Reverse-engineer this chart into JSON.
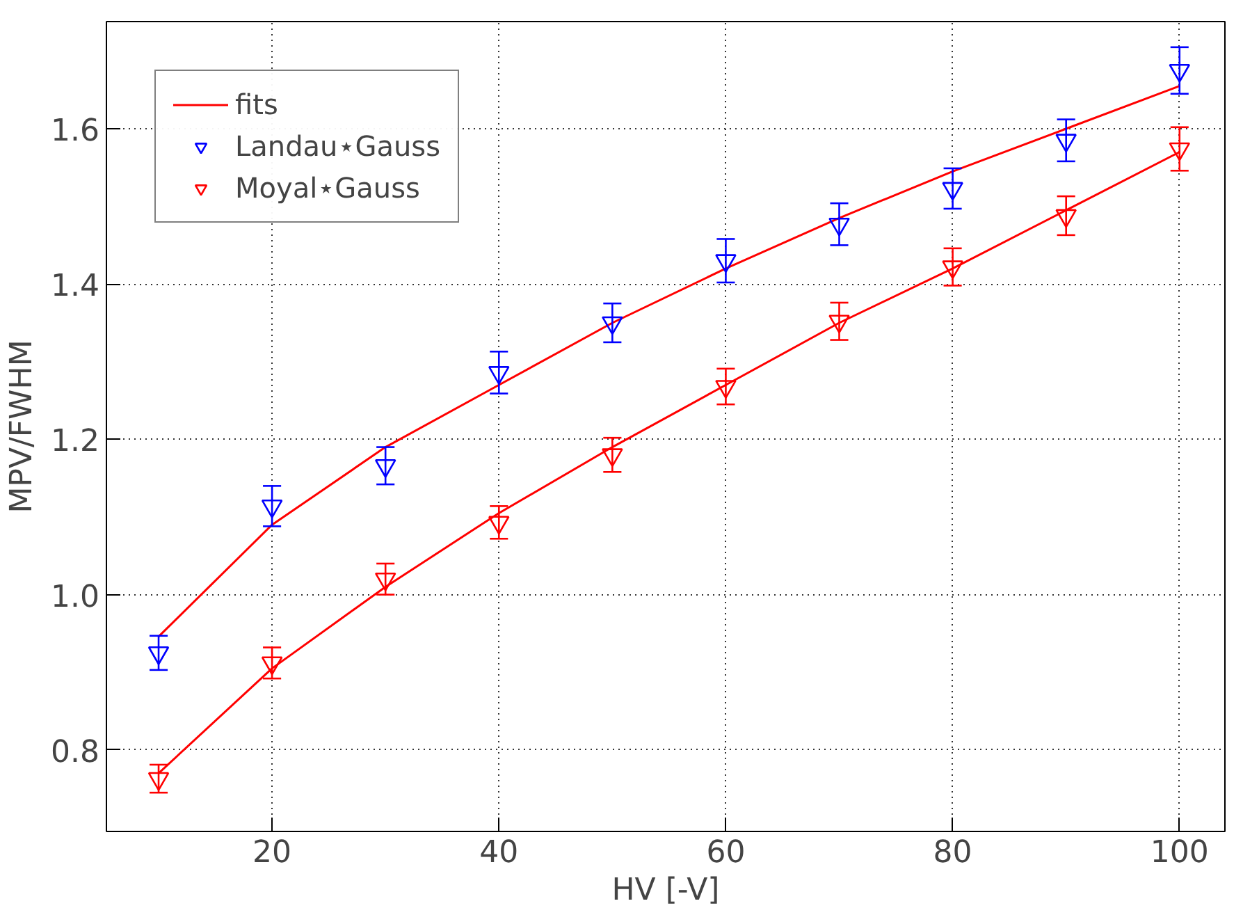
{
  "chart_data": {
    "type": "scatter",
    "ylabel": "MPV/FWHM",
    "xlabel": "HV [-V]",
    "x": [
      10,
      20,
      30,
      40,
      50,
      60,
      70,
      80,
      90,
      100
    ],
    "series": [
      {
        "name": "fits",
        "type": "line",
        "marker": "none",
        "color": "#ff0000",
        "values": [
          0.946,
          1.09,
          1.19,
          1.27,
          1.35,
          1.42,
          1.485,
          1.545,
          1.6,
          1.655
        ]
      },
      {
        "type": "line",
        "marker": "none",
        "color": "#ff0000",
        "values": [
          0.77,
          0.905,
          1.01,
          1.105,
          1.19,
          1.27,
          1.35,
          1.42,
          1.495,
          1.57
        ]
      },
      {
        "name": "Landau⋆Gauss",
        "color": "#0000ff",
        "values": [
          0.925,
          1.114,
          1.166,
          1.286,
          1.35,
          1.43,
          1.477,
          1.523,
          1.585,
          1.675
        ],
        "errors": [
          0.022,
          0.026,
          0.024,
          0.027,
          0.025,
          0.028,
          0.027,
          0.026,
          0.027,
          0.03
        ]
      },
      {
        "name": "Moyal⋆Gauss",
        "color": "#ff0000",
        "values": [
          0.763,
          0.912,
          1.02,
          1.093,
          1.18,
          1.268,
          1.352,
          1.422,
          1.488,
          1.574
        ],
        "errors": [
          0.018,
          0.02,
          0.02,
          0.021,
          0.022,
          0.023,
          0.024,
          0.024,
          0.025,
          0.028
        ]
      }
    ],
    "xlim": [
      5.4,
      104
    ],
    "ylim": [
      0.695,
      1.738
    ],
    "xticks": [
      20,
      40,
      60,
      80,
      100
    ],
    "yticks": [
      {
        "value": 0.8,
        "label": "0.8"
      },
      {
        "value": 1.0,
        "label": "1.0"
      },
      {
        "value": 1.2,
        "label": "1.2"
      },
      {
        "value": 1.4,
        "label": "1.4"
      },
      {
        "value": 1.6,
        "label": "1.6"
      }
    ],
    "grid": true,
    "legend": "top left",
    "marker": "triangle"
  }
}
